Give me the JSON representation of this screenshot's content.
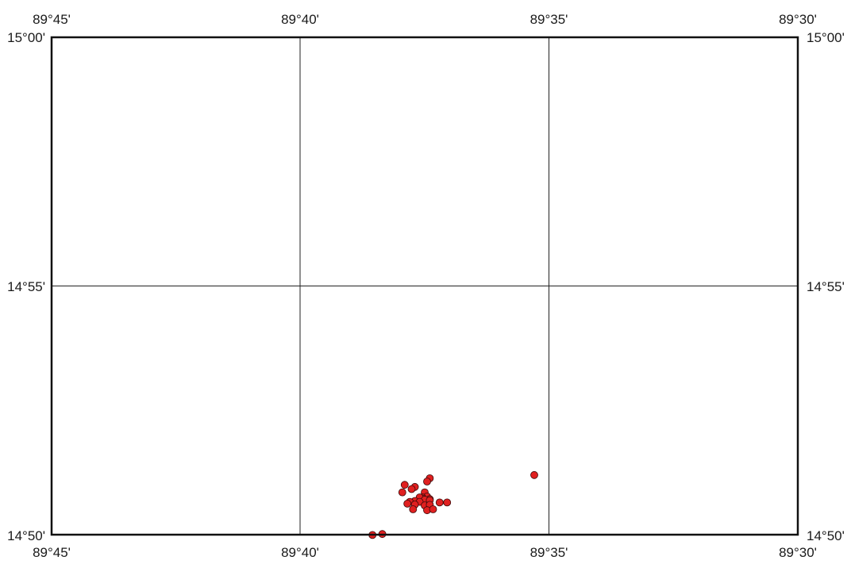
{
  "map": {
    "lon_labels_top": [
      "89°45'",
      "89°40'",
      "89°35'",
      "89°30'"
    ],
    "lon_labels_bottom": [
      "89°45'",
      "89°40'",
      "89°35'",
      "89°30'"
    ],
    "lat_labels_left": [
      "15°00'",
      "14°55'",
      "14°50'"
    ],
    "lat_labels_right": [
      "15°00'",
      "14°55'",
      "14°50'"
    ],
    "extent": {
      "lon_west": -89.75,
      "lon_east": -89.5,
      "lat_south": 14.8333,
      "lat_north": 15.0
    },
    "grid": true,
    "point_color": "#e02020",
    "point_stroke": "#3a0a0a",
    "points": [
      {
        "lon": -89.5883,
        "lat": 14.8533
      },
      {
        "lon": -89.6233,
        "lat": 14.8522
      },
      {
        "lon": -89.6242,
        "lat": 14.8511
      },
      {
        "lon": -89.6283,
        "lat": 14.8493
      },
      {
        "lon": -89.6294,
        "lat": 14.8486
      },
      {
        "lon": -89.625,
        "lat": 14.8475
      },
      {
        "lon": -89.6242,
        "lat": 14.8461
      },
      {
        "lon": -89.6258,
        "lat": 14.8458
      },
      {
        "lon": -89.6258,
        "lat": 14.8454
      },
      {
        "lon": -89.6233,
        "lat": 14.8452
      },
      {
        "lon": -89.6267,
        "lat": 14.8458
      },
      {
        "lon": -89.625,
        "lat": 14.845
      },
      {
        "lon": -89.6283,
        "lat": 14.8446
      },
      {
        "lon": -89.63,
        "lat": 14.8443
      },
      {
        "lon": -89.6267,
        "lat": 14.8443
      },
      {
        "lon": -89.6233,
        "lat": 14.8448
      },
      {
        "lon": -89.62,
        "lat": 14.8441
      },
      {
        "lon": -89.6175,
        "lat": 14.8441
      },
      {
        "lon": -89.625,
        "lat": 14.8431
      },
      {
        "lon": -89.6233,
        "lat": 14.8433
      },
      {
        "lon": -89.6283,
        "lat": 14.8434
      },
      {
        "lon": -89.6308,
        "lat": 14.8437
      },
      {
        "lon": -89.6242,
        "lat": 14.8415
      },
      {
        "lon": -89.6222,
        "lat": 14.8418
      },
      {
        "lon": -89.6289,
        "lat": 14.8418
      },
      {
        "lon": -89.6325,
        "lat": 14.8475
      },
      {
        "lon": -89.6317,
        "lat": 14.85
      },
      {
        "lon": -89.6392,
        "lat": 14.8335
      },
      {
        "lon": -89.6425,
        "lat": 14.8332
      }
    ]
  }
}
